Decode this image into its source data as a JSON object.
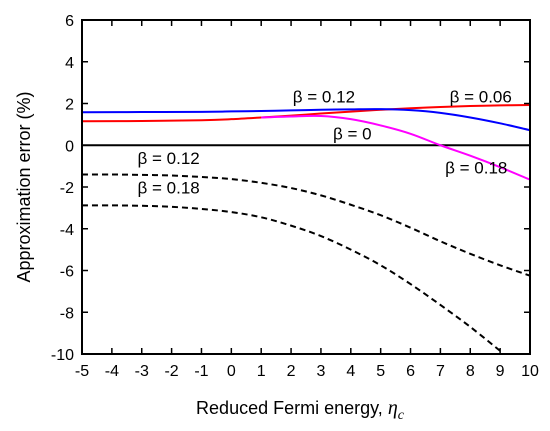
{
  "chart_data": {
    "type": "line",
    "xlabel": "Reduced Fermi energy, ",
    "xlabel_symbol": "η",
    "xlabel_subscript": "c",
    "ylabel": "Approximation error (%)",
    "xlim": [
      -5,
      10
    ],
    "ylim": [
      -10,
      6
    ],
    "xticks": [
      -5,
      -4,
      -3,
      -2,
      -1,
      0,
      1,
      2,
      3,
      4,
      5,
      6,
      7,
      8,
      9,
      10
    ],
    "yticks": [
      -10,
      -8,
      -6,
      -4,
      -2,
      0,
      2,
      4,
      6
    ],
    "grid": false,
    "series": [
      {
        "name": "β = 0",
        "color": "#000000",
        "style": "solid",
        "x": [
          -5,
          10
        ],
        "y": [
          0,
          0
        ]
      },
      {
        "name": "β = 0.06",
        "color": "#ff0000",
        "style": "solid",
        "x": [
          -5,
          -3,
          -1,
          0,
          1,
          2,
          3,
          4,
          5,
          6,
          7,
          8,
          9,
          10
        ],
        "y": [
          1.15,
          1.16,
          1.2,
          1.25,
          1.33,
          1.42,
          1.52,
          1.61,
          1.7,
          1.77,
          1.83,
          1.88,
          1.91,
          1.93
        ]
      },
      {
        "name": "β = 0.12",
        "color": "#0000ff",
        "style": "solid",
        "x": [
          -5,
          -3,
          -1,
          0,
          1,
          2,
          3,
          4,
          5,
          6,
          7,
          8,
          9,
          10
        ],
        "y": [
          1.58,
          1.59,
          1.6,
          1.62,
          1.64,
          1.67,
          1.7,
          1.72,
          1.73,
          1.68,
          1.55,
          1.33,
          1.05,
          0.72
        ]
      },
      {
        "name": "β = 0.18",
        "color": "#ff00ff",
        "style": "solid",
        "x": [
          1,
          2,
          3,
          4,
          5,
          6,
          7,
          8,
          9,
          10
        ],
        "y": [
          1.33,
          1.38,
          1.4,
          1.25,
          0.95,
          0.55,
          0.0,
          -0.5,
          -1.05,
          -1.65
        ]
      },
      {
        "name": "β = 0.12",
        "color": "#000000",
        "style": "dashed",
        "x": [
          -5,
          -4,
          -3,
          -2,
          -1,
          0,
          1,
          2,
          3,
          4,
          5,
          6,
          7,
          8,
          9,
          10
        ],
        "y": [
          -1.4,
          -1.4,
          -1.42,
          -1.45,
          -1.52,
          -1.62,
          -1.8,
          -2.05,
          -2.4,
          -2.85,
          -3.35,
          -3.95,
          -4.6,
          -5.2,
          -5.75,
          -6.25
        ]
      },
      {
        "name": "β = 0.18",
        "color": "#000000",
        "style": "dashed",
        "x": [
          -5,
          -4,
          -3,
          -2,
          -1,
          0,
          1,
          2,
          3,
          4,
          5,
          6,
          7,
          8,
          9
        ],
        "y": [
          -2.88,
          -2.88,
          -2.9,
          -2.95,
          -3.05,
          -3.2,
          -3.45,
          -3.85,
          -4.35,
          -5.0,
          -5.75,
          -6.65,
          -7.65,
          -8.7,
          -9.85
        ]
      }
    ],
    "annotations": [
      {
        "text": "β = 0.12",
        "x": 3.1,
        "y": 2.05
      },
      {
        "text": "β = 0.06",
        "x": 8.35,
        "y": 2.05
      },
      {
        "text": "β = 0",
        "x": 4.05,
        "y": 0.28
      },
      {
        "text": "β = 0.18",
        "x": 8.2,
        "y": -1.35
      },
      {
        "text": "β = 0.12",
        "x": -2.1,
        "y": -0.9
      },
      {
        "text": "β = 0.18",
        "x": -2.1,
        "y": -2.3
      }
    ]
  }
}
